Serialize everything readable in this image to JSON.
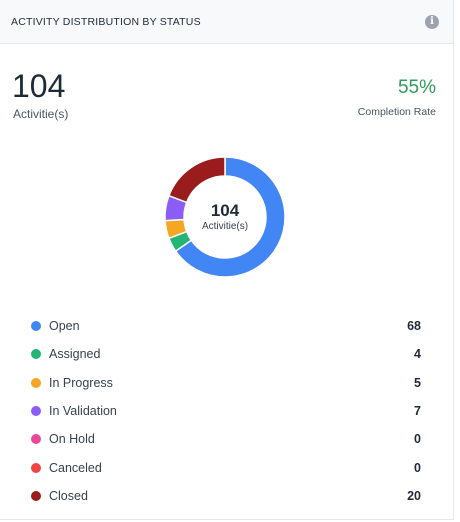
{
  "header": {
    "title": "ACTIVITY DISTRIBUTION BY STATUS",
    "info_icon": "info-icon"
  },
  "summary": {
    "total": "104",
    "total_label": "Activitie(s)",
    "completion_rate": "55%",
    "completion_label": "Completion Rate"
  },
  "colors": {
    "completion": "#2e9c5a"
  },
  "chart_data": {
    "type": "pie",
    "center_value": "104",
    "center_label": "Activitie(s)",
    "categories": [
      "Open",
      "Assigned",
      "In Progress",
      "In Validation",
      "On Hold",
      "Canceled",
      "Closed"
    ],
    "values": [
      68,
      4,
      5,
      7,
      0,
      0,
      20
    ],
    "colors": [
      "#4285f4",
      "#22b573",
      "#f5a623",
      "#8b5cf6",
      "#ec4899",
      "#ef4444",
      "#9b1c1c"
    ],
    "legend_placement": "bottom"
  }
}
